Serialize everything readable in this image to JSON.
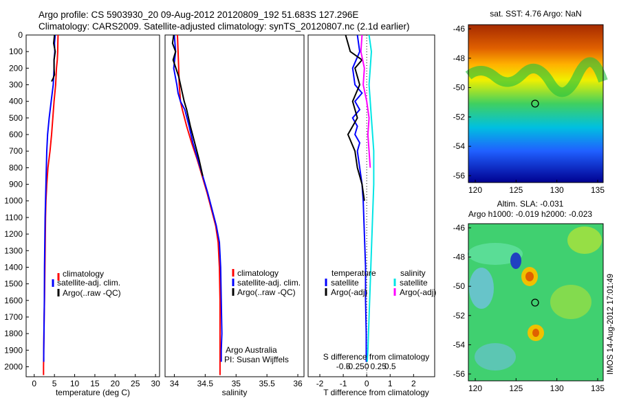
{
  "title_line1": "Argo profile: CS 5903930_20 09-Aug-2012 20120809_192 51.683S 127.296E",
  "title_line2": "Climatology: CARS2009. Satellite-adjusted climatology: synTS_20120807.nc (2.1d earlier)",
  "sst_title": "sat. SST: 4.76 Argo: NaN",
  "sla_title1": "Altim. SLA: -0.031",
  "sla_title2": "Argo h1000: -0.019 h2000: -0.023",
  "vertical_stamp": "IMOS 14-Aug-2012 17:01:49",
  "attribution1": "Argo Australia",
  "attribution2": "PI: Susan Wijffels",
  "colors": {
    "climatology": "#ff0000",
    "satellite": "#0000ff",
    "argo": "#000000",
    "cyan": "#00e5e5",
    "magenta": "#ff00ff"
  },
  "chart_data": [
    {
      "type": "line",
      "name": "temperature",
      "xlabel": "temperature (deg C)",
      "ylabel": "",
      "xlim": [
        -2,
        31
      ],
      "xticks": [
        0,
        5,
        10,
        15,
        20,
        25,
        30
      ],
      "xticklabels": [
        "0",
        "5",
        "10",
        "15",
        "20",
        "25",
        "30"
      ],
      "ylim": [
        2060,
        0
      ],
      "yticks": [
        0,
        100,
        200,
        300,
        400,
        500,
        600,
        700,
        800,
        900,
        1000,
        1100,
        1200,
        1300,
        1400,
        1500,
        1600,
        1700,
        1800,
        1900,
        2000
      ],
      "yticklabels": [
        "0",
        "100",
        "200",
        "300",
        "400",
        "500",
        "600",
        "700",
        "800",
        "900",
        "1000",
        "1100",
        "1200",
        "1300",
        "1400",
        "1500",
        "1600",
        "1700",
        "1800",
        "1900",
        "2000"
      ],
      "legend": [
        "climatology",
        "satellite-adj. clim.",
        "Argo(..raw -QC)"
      ],
      "series": [
        {
          "name": "climatology",
          "color": "#ff0000",
          "x": [
            5.9,
            5.85,
            5.8,
            5.7,
            5.5,
            5.3,
            4.9,
            4.6,
            4.3,
            3.9,
            3.4,
            3.1,
            2.9,
            2.8,
            2.75,
            2.65,
            2.55,
            2.45,
            2.4,
            2.35,
            2.3,
            2.3
          ],
          "y": [
            0,
            50,
            100,
            150,
            200,
            300,
            400,
            500,
            600,
            700,
            800,
            900,
            1000,
            1100,
            1200,
            1400,
            1600,
            1700,
            1800,
            1900,
            2000,
            2050
          ]
        },
        {
          "name": "satellite-adj. clim.",
          "color": "#0000ff",
          "x": [
            5.2,
            5.0,
            5.1,
            4.9,
            4.9,
            4.7,
            4.2,
            3.7,
            3.3,
            3.1,
            3.0,
            2.9,
            2.8,
            2.7,
            2.65,
            2.55,
            2.5,
            2.45,
            2.4,
            2.35,
            2.35
          ],
          "y": [
            0,
            50,
            100,
            150,
            200,
            300,
            400,
            500,
            600,
            700,
            800,
            900,
            1000,
            1100,
            1200,
            1400,
            1600,
            1700,
            1800,
            1900,
            1970
          ]
        },
        {
          "name": "Argo(..raw -QC)",
          "color": "#000000",
          "x": [
            5.0,
            4.8,
            5.2,
            4.9,
            4.9,
            5.0,
            4.7,
            4.3
          ],
          "y": [
            0,
            50,
            100,
            150,
            200,
            240,
            260,
            280
          ]
        }
      ]
    },
    {
      "type": "line",
      "name": "salinity",
      "xlabel": "salinity",
      "ylabel": "",
      "xlim": [
        33.85,
        36.1
      ],
      "xticks": [
        34,
        34.5,
        35,
        35.5,
        36
      ],
      "xticklabels": [
        "34",
        "34.5",
        "35",
        "35.5",
        "36"
      ],
      "ylim": [
        2060,
        0
      ],
      "legend": [
        "climatology",
        "satellite-adj. clim.",
        "Argo(..raw -QC)"
      ],
      "series": [
        {
          "name": "climatology",
          "color": "#ff0000",
          "x": [
            34.05,
            34.06,
            34.07,
            34.08,
            34.09,
            34.1,
            34.13,
            34.2,
            34.28,
            34.37,
            34.45,
            34.53,
            34.6,
            34.67,
            34.71,
            34.73,
            34.74,
            34.74,
            34.74,
            34.74,
            34.74
          ],
          "y": [
            0,
            100,
            200,
            300,
            350,
            400,
            450,
            550,
            650,
            750,
            850,
            950,
            1050,
            1150,
            1250,
            1400,
            1600,
            1800,
            1900,
            2000,
            2050
          ]
        },
        {
          "name": "satellite-adj. clim.",
          "color": "#0000ff",
          "x": [
            34.0,
            34.02,
            33.99,
            34.04,
            34.06,
            34.1,
            34.17,
            34.24,
            34.3,
            34.38,
            34.46,
            34.54,
            34.61,
            34.68,
            34.73,
            34.75,
            34.76,
            34.77,
            34.76,
            34.76
          ],
          "y": [
            0,
            100,
            200,
            300,
            350,
            400,
            450,
            550,
            650,
            750,
            850,
            950,
            1050,
            1150,
            1250,
            1400,
            1600,
            1800,
            1900,
            1970
          ]
        },
        {
          "name": "Argo(..raw -QC)",
          "color": "#000000",
          "x": [
            33.99,
            33.97,
            34.02,
            33.98,
            34.07,
            34.13,
            34.16,
            34.2,
            34.26,
            34.33,
            34.4,
            34.46
          ],
          "y": [
            0,
            50,
            100,
            150,
            250,
            350,
            400,
            450,
            550,
            650,
            750,
            850
          ]
        }
      ]
    },
    {
      "type": "line",
      "name": "differences",
      "xlabel": "T difference from climatology",
      "xlabel_top": "S difference from climatology",
      "ylabel": "",
      "xlim": [
        -2.5,
        2.9
      ],
      "xticks": [
        -2,
        -1,
        0,
        1,
        2
      ],
      "xticklabels": [
        "-2",
        "-1",
        "0",
        "1",
        "2"
      ],
      "sticks": [
        "-0.5",
        "-0.25",
        "0",
        "0.25",
        "0.5"
      ],
      "ylim": [
        2060,
        0
      ],
      "legend_titles": [
        "temperature",
        "salinity"
      ],
      "legend": [
        "satellite",
        "Argo(-adj)",
        "satellite",
        "Argo(-adj)"
      ],
      "series": [
        {
          "name": "satellite",
          "color": "#0000ff",
          "x": [
            -0.4,
            -0.3,
            -0.6,
            -0.5,
            -0.2,
            -0.5,
            -0.3,
            -0.6,
            -0.4,
            -0.5,
            -0.3,
            -0.4,
            -0.3,
            -0.2,
            -0.15,
            -0.1,
            -0.05,
            -0.05,
            -0.02,
            -0.02
          ],
          "y": [
            0,
            100,
            200,
            300,
            350,
            400,
            450,
            500,
            550,
            600,
            650,
            700,
            800,
            900,
            1000,
            1200,
            1400,
            1600,
            1800,
            1970
          ]
        },
        {
          "name": "Argo(-adj)",
          "color": "#000000",
          "x": [
            -0.9,
            -0.7,
            -0.2,
            -0.5,
            -0.3,
            -0.6,
            -0.4,
            -0.8,
            -0.5,
            -0.4,
            -0.2,
            -0.1
          ],
          "y": [
            0,
            100,
            150,
            200,
            300,
            400,
            500,
            600,
            700,
            800,
            900,
            1000
          ]
        },
        {
          "name": "satellite",
          "color": "#00e5e5",
          "x": [
            0.1,
            0.2,
            0.15,
            0.1,
            0.15,
            0.2,
            0.25,
            0.3,
            0.3,
            0.25,
            0.2,
            0.15,
            0.1,
            0.05,
            0.02
          ],
          "y": [
            0,
            100,
            200,
            300,
            400,
            500,
            600,
            700,
            900,
            1100,
            1300,
            1500,
            1700,
            1900,
            1970
          ]
        },
        {
          "name": "Argo(-adj)",
          "color": "#ff00ff",
          "x": [
            -0.2,
            -0.25,
            -0.1,
            -0.15,
            0.0,
            0.1,
            0.05,
            0.1,
            0.15
          ],
          "y": [
            0,
            100,
            200,
            300,
            400,
            500,
            600,
            700,
            800
          ]
        }
      ]
    }
  ],
  "maps": {
    "sst": {
      "xticks": [
        "120",
        "125",
        "130",
        "135"
      ],
      "yticks": [
        "-46",
        "-48",
        "-50",
        "-52",
        "-54",
        "-56"
      ]
    },
    "sla": {
      "xticks": [
        "120",
        "125",
        "130",
        "135"
      ],
      "yticks": [
        "-46",
        "-48",
        "-50",
        "-52",
        "-54",
        "-56"
      ]
    }
  }
}
